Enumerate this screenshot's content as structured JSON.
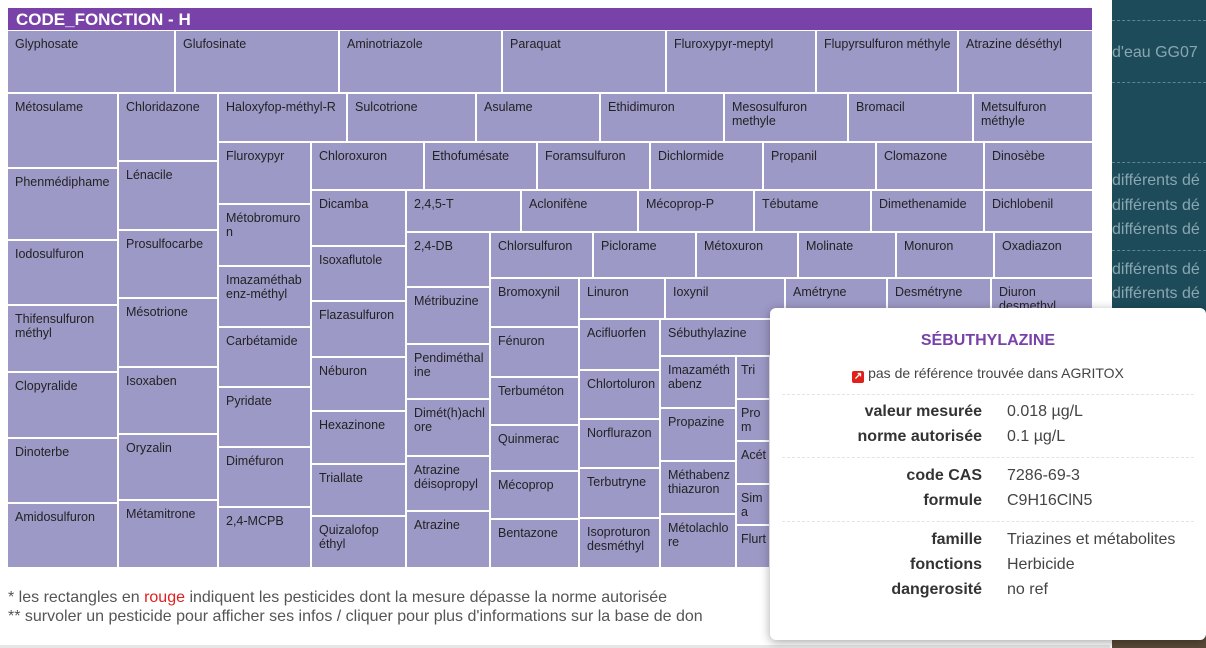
{
  "treemap": {
    "title": "CODE_FONCTION - H",
    "cell_color": "#9d99c7",
    "header_color": "#7842a8",
    "items": [
      "Glyphosate",
      "Glufosinate",
      "Aminotriazole",
      "Paraquat",
      "Fluroxypyr-meptyl",
      "Flupyrsulfuron méthyle",
      "Atrazine déséthyl",
      "Métosulame",
      "Phenmédiphame",
      "Iodosulfuron",
      "Thifensulfuron méthyl",
      "Clopyralide",
      "Dinoterbe",
      "Amidosulfuron",
      "Chloridazone",
      "Lénacile",
      "Prosulfocarbe",
      "Mésotrione",
      "Isoxaben",
      "Oryzalin",
      "Métamitrone",
      "Haloxyfop-méthyl-R",
      "Sulcotrione",
      "Asulame",
      "Ethidimuron",
      "Mesosulfuron methyle",
      "Bromacil",
      "Metsulfuron méthyle",
      "Fluroxypyr",
      "Métobromuron",
      "Imazaméthabenz-méthyl",
      "Carbétamide",
      "Pyridate",
      "Diméfuron",
      "2,4-MCPB",
      "Chloroxuron",
      "Ethofumésate",
      "Foramsulfuron",
      "Dichlormide",
      "Propanil",
      "Clomazone",
      "Dinosèbe",
      "Dicamba",
      "Isoxaflutole",
      "Flazasulfuron",
      "Néburon",
      "Hexazinone",
      "Triallate",
      "Quizalofop éthyl",
      "2,4,5-T",
      "Aclonifène",
      "Mécoprop-P",
      "Tébutame",
      "Dimethenamide",
      "Dichlobenil",
      "2,4-DB",
      "Métribuzine",
      "Pendiméthaline",
      "Dimét(h)achlore",
      "Atrazine déisopropyl",
      "Atrazine",
      "Chlorsulfuron",
      "Piclorame",
      "Métoxuron",
      "Molinate",
      "Monuron",
      "Oxadiazon",
      "Bromoxynil",
      "Fénuron",
      "Terbuméton",
      "Quinmerac",
      "Mécoprop",
      "Bentazone",
      "Linuron",
      "Ioxynil",
      "Amétryne",
      "Desmétryne",
      "Diuron desmethyl",
      "Acifluorfen",
      "Chlortoluron",
      "Norflurazon",
      "Terbutryne",
      "Isoproturon desméthyl",
      "Sébuthylazine",
      "Imazaméthabenz",
      "Propazine",
      "Méthabenzthiazuron",
      "Métolachlore",
      "Tri",
      "Prom",
      "Acét",
      "Sima",
      "Flurt"
    ]
  },
  "footer": {
    "line1_pre": "* les rectangles en ",
    "line1_red": "rouge",
    "line1_post": " indiquent les pesticides dont la mesure dépasse la norme autorisée",
    "line2": "** survoler un pesticide pour afficher ses infos / cliquer pour plus d'informations sur la base de don"
  },
  "side_panel": {
    "lines": [
      "d'eau GG07",
      "différents dé",
      "différents dé",
      "différents dé",
      "différents dé",
      "différents dé"
    ]
  },
  "tooltip": {
    "title": "SÉBUTHYLAZINE",
    "link_icon": "external-link-icon",
    "link_text": "pas de référence trouvée dans AGRITOX",
    "rows": [
      {
        "label": "valeur mesurée",
        "value": "0.018 µg/L"
      },
      {
        "label": "norme autorisée",
        "value": "0.1 µg/L"
      },
      {
        "label": "code CAS",
        "value": "7286-69-3"
      },
      {
        "label": "formule",
        "value": "C9H16ClN5"
      },
      {
        "label": "famille",
        "value": "Triazines et métabolites"
      },
      {
        "label": "fonctions",
        "value": "Herbicide"
      },
      {
        "label": "dangerosité",
        "value": "no ref"
      }
    ]
  }
}
